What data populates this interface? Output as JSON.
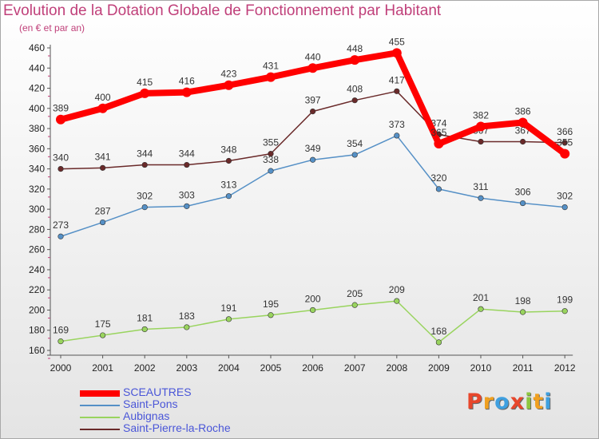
{
  "chart_data": {
    "type": "line",
    "title": "Evolution de la Dotation Globale de Fonctionnement par Habitant",
    "subtitle": "(en € et par an)",
    "xlabel": "",
    "ylabel": "",
    "ylim": [
      160,
      460
    ],
    "yticks": [
      160,
      180,
      200,
      220,
      240,
      260,
      280,
      300,
      320,
      340,
      360,
      380,
      400,
      420,
      440,
      460
    ],
    "categories": [
      "2000",
      "2001",
      "2002",
      "2003",
      "2004",
      "2005",
      "2006",
      "2007",
      "2008",
      "2009",
      "2010",
      "2011",
      "2012"
    ],
    "grid": false,
    "legend_position": "bottom-left",
    "series": [
      {
        "name": "SCEAUTRES",
        "color": "#ff0000",
        "values": [
          389,
          400,
          415,
          416,
          423,
          431,
          440,
          448,
          455,
          365,
          382,
          386,
          355
        ]
      },
      {
        "name": "Saint-Pons",
        "color": "#5590c6",
        "values": [
          273,
          287,
          302,
          303,
          313,
          338,
          349,
          354,
          373,
          320,
          311,
          306,
          302
        ]
      },
      {
        "name": "Aubignas",
        "color": "#99d45e",
        "values": [
          169,
          175,
          181,
          183,
          191,
          195,
          200,
          205,
          209,
          168,
          201,
          198,
          199
        ]
      },
      {
        "name": "Saint-Pierre-la-Roche",
        "color": "#6a2a2a",
        "values": [
          340,
          341,
          344,
          344,
          348,
          355,
          397,
          408,
          417,
          374,
          367,
          367,
          366
        ]
      }
    ]
  },
  "logo": {
    "text": "Proxiti",
    "letters": [
      {
        "ch": "P",
        "color": "#e8472c"
      },
      {
        "ch": "r",
        "color": "#f0a020"
      },
      {
        "ch": "o",
        "color": "#3fa0e0"
      },
      {
        "ch": "x",
        "color": "#e8472c"
      },
      {
        "ch": "i",
        "color": "#8dc63f"
      },
      {
        "ch": "t",
        "color": "#f0a020"
      },
      {
        "ch": "i",
        "color": "#3fa0e0"
      }
    ]
  }
}
